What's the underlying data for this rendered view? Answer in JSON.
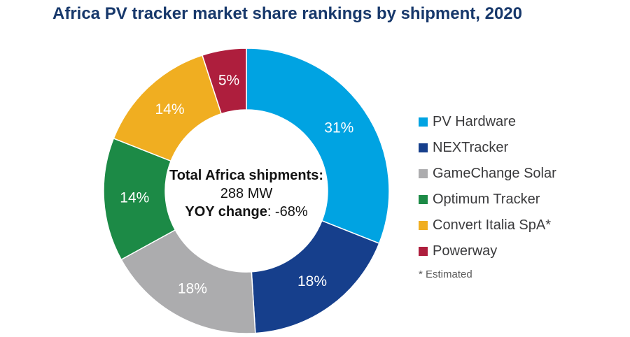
{
  "title": "Africa PV tracker market share rankings by shipment, 2020",
  "title_color": "#17386B",
  "chart_data": {
    "type": "pie",
    "subtype": "donut",
    "title": "Africa PV tracker market share rankings by shipment, 2020",
    "unit": "%",
    "direction": "clockwise",
    "start_angle_deg": 0,
    "donut_hole_ratio": 0.57,
    "slice_label_color": "#FFFFFF",
    "legend_position": "right",
    "series": [
      {
        "name": "PV Hardware",
        "value": 31,
        "label": "31%",
        "color": "#00A3E2"
      },
      {
        "name": "NEXTracker",
        "value": 18,
        "label": "18%",
        "color": "#163F8C"
      },
      {
        "name": "GameChange Solar",
        "value": 18,
        "label": "18%",
        "color": "#ACACAE"
      },
      {
        "name": "Optimum Tracker",
        "value": 14,
        "label": "14%",
        "color": "#1C8A46"
      },
      {
        "name": "Convert Italia SpA*",
        "value": 14,
        "label": "14%",
        "color": "#F0AE21"
      },
      {
        "name": "Powerway",
        "value": 5,
        "label": "5%",
        "color": "#AE1E3D"
      }
    ],
    "center_text": [
      "Total Africa shipments:",
      "288 MW",
      "YOY change: -68%"
    ]
  },
  "center_label": {
    "line1": "Total Africa shipments:",
    "line2": "288 MW",
    "line3_bold": "YOY change",
    "line3_rest": ": -68%"
  },
  "legend": {
    "footnote": "* Estimated"
  }
}
